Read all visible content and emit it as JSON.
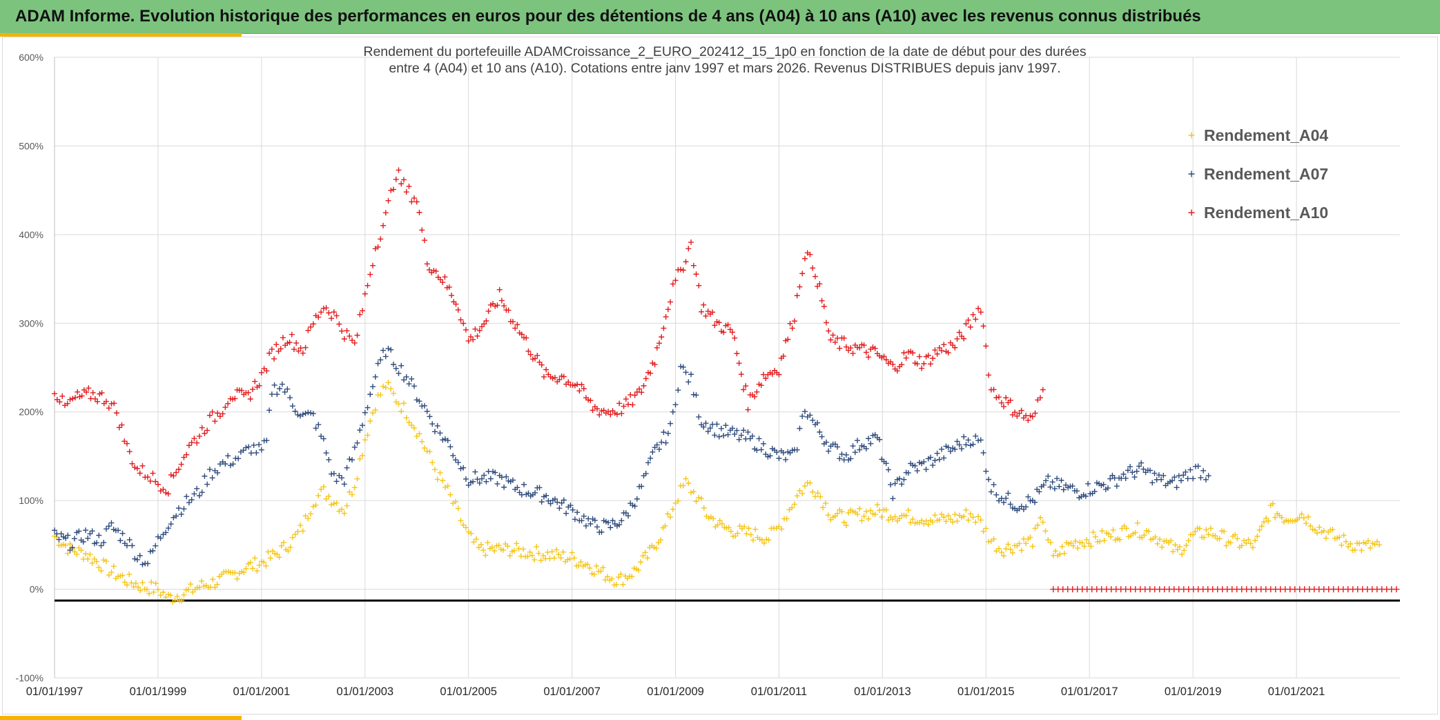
{
  "header": {
    "title": "ADAM Informe. Evolution historique des performances en euros pour des détentions de 4 ans (A04) à 10 ans (A10) avec les revenus connus distribués"
  },
  "colors": {
    "header_bg": "#7cc47e",
    "accent": "#f4b400",
    "A04": "#f5c518",
    "A07": "#2f4b7c",
    "A10": "#e31a1c",
    "grid": "#d9d9d9"
  },
  "chart_data": {
    "type": "scatter",
    "title_line1": "Rendement du portefeuille ADAMCroissance_2_EURO_202412_15_1p0  en fonction de la date de début pour des durées",
    "title_line2": "entre 4 (A04) et 10 ans (A10). Cotations entre janv 1997 et mars 2026. Revenus DISTRIBUES depuis janv 1997.",
    "xlabel": "",
    "ylabel": "",
    "x_range": [
      1997.0,
      2023.0
    ],
    "ylim": [
      -100,
      600
    ],
    "y_ticks": [
      -100,
      0,
      100,
      200,
      300,
      400,
      500,
      600
    ],
    "y_tick_labels": [
      "-100%",
      "0%",
      "100%",
      "200%",
      "300%",
      "400%",
      "500%",
      "600%"
    ],
    "x_tick_values": [
      1997,
      1999,
      2001,
      2003,
      2005,
      2007,
      2009,
      2011,
      2013,
      2015,
      2017,
      2019,
      2021
    ],
    "x_tick_labels": [
      "01/01/1997",
      "01/01/1999",
      "01/01/2001",
      "01/01/2003",
      "01/01/2005",
      "01/01/2007",
      "01/01/2009",
      "01/01/2011",
      "01/01/2013",
      "01/01/2015",
      "01/01/2017",
      "01/01/2019",
      "01/01/2021"
    ],
    "grid": true,
    "legend_position": "right",
    "series": [
      {
        "name": "Rendement_A04",
        "color": "#f5c518",
        "marker": "+",
        "points": [
          [
            1997.0,
            60
          ],
          [
            1997.3,
            45
          ],
          [
            1997.6,
            40
          ],
          [
            1997.9,
            28
          ],
          [
            1998.1,
            20
          ],
          [
            1998.4,
            10
          ],
          [
            1998.7,
            3
          ],
          [
            1999.0,
            0
          ],
          [
            1999.2,
            -10
          ],
          [
            1999.5,
            -5
          ],
          [
            1999.8,
            3
          ],
          [
            2000.1,
            8
          ],
          [
            2000.4,
            15
          ],
          [
            2000.7,
            25
          ],
          [
            2001.0,
            30
          ],
          [
            2001.3,
            40
          ],
          [
            2001.6,
            55
          ],
          [
            2001.8,
            70
          ],
          [
            2002.0,
            100
          ],
          [
            2002.2,
            110
          ],
          [
            2002.4,
            100
          ],
          [
            2002.6,
            90
          ],
          [
            2002.8,
            120
          ],
          [
            2003.0,
            170
          ],
          [
            2003.2,
            210
          ],
          [
            2003.4,
            230
          ],
          [
            2003.6,
            215
          ],
          [
            2003.8,
            200
          ],
          [
            2004.0,
            180
          ],
          [
            2004.2,
            155
          ],
          [
            2004.4,
            130
          ],
          [
            2004.6,
            110
          ],
          [
            2004.8,
            85
          ],
          [
            2005.0,
            60
          ],
          [
            2005.2,
            45
          ],
          [
            2005.5,
            45
          ],
          [
            2005.8,
            45
          ],
          [
            2006.1,
            42
          ],
          [
            2006.4,
            40
          ],
          [
            2006.7,
            38
          ],
          [
            2007.0,
            35
          ],
          [
            2007.3,
            28
          ],
          [
            2007.6,
            18
          ],
          [
            2007.9,
            10
          ],
          [
            2008.2,
            20
          ],
          [
            2008.5,
            40
          ],
          [
            2008.8,
            70
          ],
          [
            2009.0,
            100
          ],
          [
            2009.2,
            120
          ],
          [
            2009.4,
            105
          ],
          [
            2009.6,
            85
          ],
          [
            2009.9,
            70
          ],
          [
            2010.2,
            65
          ],
          [
            2010.5,
            62
          ],
          [
            2010.8,
            58
          ],
          [
            2011.0,
            70
          ],
          [
            2011.2,
            90
          ],
          [
            2011.4,
            110
          ],
          [
            2011.6,
            120
          ],
          [
            2011.8,
            105
          ],
          [
            2012.0,
            85
          ],
          [
            2012.3,
            80
          ],
          [
            2012.6,
            85
          ],
          [
            2012.9,
            88
          ],
          [
            2013.2,
            85
          ],
          [
            2013.5,
            82
          ],
          [
            2013.8,
            80
          ],
          [
            2014.1,
            78
          ],
          [
            2014.4,
            80
          ],
          [
            2014.7,
            85
          ],
          [
            2014.9,
            75
          ],
          [
            2015.1,
            55
          ],
          [
            2015.3,
            45
          ],
          [
            2015.6,
            50
          ],
          [
            2015.9,
            55
          ],
          [
            2016.1,
            80
          ],
          [
            2016.3,
            35
          ],
          [
            2016.6,
            50
          ],
          [
            2016.9,
            55
          ],
          [
            2017.2,
            58
          ],
          [
            2017.5,
            62
          ],
          [
            2017.8,
            68
          ],
          [
            2018.1,
            65
          ],
          [
            2018.4,
            55
          ],
          [
            2018.7,
            42
          ],
          [
            2019.0,
            60
          ],
          [
            2019.3,
            65
          ],
          [
            2019.6,
            58
          ],
          [
            2019.9,
            52
          ],
          [
            2020.2,
            50
          ],
          [
            2020.5,
            90
          ],
          [
            2020.8,
            80
          ],
          [
            2021.1,
            85
          ],
          [
            2021.4,
            70
          ],
          [
            2021.7,
            60
          ],
          [
            2022.0,
            52
          ],
          [
            2022.3,
            48
          ],
          [
            2022.6,
            50
          ]
        ]
      },
      {
        "name": "Rendement_A07",
        "color": "#2f4b7c",
        "marker": "+",
        "points": [
          [
            1997.0,
            60
          ],
          [
            1997.3,
            52
          ],
          [
            1997.6,
            62
          ],
          [
            1997.9,
            55
          ],
          [
            1998.1,
            70
          ],
          [
            1998.4,
            55
          ],
          [
            1998.6,
            38
          ],
          [
            1998.8,
            30
          ],
          [
            1999.0,
            55
          ],
          [
            1999.2,
            75
          ],
          [
            1999.4,
            90
          ],
          [
            1999.6,
            100
          ],
          [
            1999.8,
            110
          ],
          [
            2000.0,
            130
          ],
          [
            2000.2,
            140
          ],
          [
            2000.4,
            145
          ],
          [
            2000.6,
            150
          ],
          [
            2000.8,
            160
          ],
          [
            2001.0,
            155
          ],
          [
            2001.1,
            165
          ],
          [
            2001.2,
            225
          ],
          [
            2001.4,
            230
          ],
          [
            2001.6,
            210
          ],
          [
            2001.8,
            195
          ],
          [
            2002.0,
            195
          ],
          [
            2002.2,
            165
          ],
          [
            2002.4,
            125
          ],
          [
            2002.6,
            125
          ],
          [
            2002.8,
            155
          ],
          [
            2003.0,
            200
          ],
          [
            2003.2,
            240
          ],
          [
            2003.4,
            270
          ],
          [
            2003.6,
            255
          ],
          [
            2003.8,
            240
          ],
          [
            2004.0,
            220
          ],
          [
            2004.2,
            200
          ],
          [
            2004.4,
            180
          ],
          [
            2004.6,
            165
          ],
          [
            2004.8,
            145
          ],
          [
            2005.0,
            125
          ],
          [
            2005.3,
            125
          ],
          [
            2005.6,
            125
          ],
          [
            2005.9,
            115
          ],
          [
            2006.2,
            110
          ],
          [
            2006.5,
            105
          ],
          [
            2006.8,
            95
          ],
          [
            2007.1,
            85
          ],
          [
            2007.4,
            72
          ],
          [
            2007.7,
            70
          ],
          [
            2008.0,
            80
          ],
          [
            2008.3,
            110
          ],
          [
            2008.6,
            155
          ],
          [
            2008.9,
            180
          ],
          [
            2009.1,
            250
          ],
          [
            2009.3,
            235
          ],
          [
            2009.5,
            190
          ],
          [
            2009.8,
            180
          ],
          [
            2010.1,
            175
          ],
          [
            2010.4,
            170
          ],
          [
            2010.7,
            160
          ],
          [
            2011.0,
            150
          ],
          [
            2011.3,
            150
          ],
          [
            2011.5,
            205
          ],
          [
            2011.7,
            185
          ],
          [
            2012.0,
            160
          ],
          [
            2012.3,
            150
          ],
          [
            2012.6,
            165
          ],
          [
            2012.9,
            170
          ],
          [
            2013.2,
            110
          ],
          [
            2013.5,
            135
          ],
          [
            2013.8,
            140
          ],
          [
            2014.1,
            150
          ],
          [
            2014.4,
            160
          ],
          [
            2014.7,
            170
          ],
          [
            2014.9,
            165
          ],
          [
            2015.1,
            115
          ],
          [
            2015.3,
            105
          ],
          [
            2015.6,
            95
          ],
          [
            2015.9,
            100
          ],
          [
            2016.2,
            120
          ],
          [
            2016.5,
            115
          ],
          [
            2016.8,
            110
          ],
          [
            2017.1,
            115
          ],
          [
            2017.4,
            120
          ],
          [
            2017.7,
            130
          ],
          [
            2018.0,
            135
          ],
          [
            2018.3,
            125
          ],
          [
            2018.6,
            118
          ],
          [
            2018.9,
            130
          ],
          [
            2019.1,
            135
          ],
          [
            2019.3,
            128
          ]
        ]
      },
      {
        "name": "Rendement_A10",
        "color": "#e31a1c",
        "marker": "+",
        "points": [
          [
            1997.0,
            225
          ],
          [
            1997.2,
            205
          ],
          [
            1997.4,
            215
          ],
          [
            1997.7,
            220
          ],
          [
            1998.0,
            215
          ],
          [
            1998.2,
            200
          ],
          [
            1998.4,
            160
          ],
          [
            1998.6,
            135
          ],
          [
            1998.8,
            130
          ],
          [
            1999.0,
            120
          ],
          [
            1999.2,
            115
          ],
          [
            1999.4,
            140
          ],
          [
            1999.6,
            160
          ],
          [
            1999.8,
            175
          ],
          [
            2000.0,
            190
          ],
          [
            2000.2,
            200
          ],
          [
            2000.4,
            220
          ],
          [
            2000.7,
            215
          ],
          [
            2001.0,
            240
          ],
          [
            2001.2,
            265
          ],
          [
            2001.5,
            285
          ],
          [
            2001.8,
            270
          ],
          [
            2002.0,
            300
          ],
          [
            2002.2,
            320
          ],
          [
            2002.4,
            310
          ],
          [
            2002.6,
            290
          ],
          [
            2002.8,
            275
          ],
          [
            2003.0,
            330
          ],
          [
            2003.2,
            385
          ],
          [
            2003.4,
            420
          ],
          [
            2003.6,
            470
          ],
          [
            2003.8,
            450
          ],
          [
            2004.0,
            440
          ],
          [
            2004.2,
            370
          ],
          [
            2004.5,
            350
          ],
          [
            2004.8,
            320
          ],
          [
            2005.0,
            280
          ],
          [
            2005.3,
            300
          ],
          [
            2005.6,
            330
          ],
          [
            2005.9,
            300
          ],
          [
            2006.2,
            270
          ],
          [
            2006.5,
            240
          ],
          [
            2006.8,
            240
          ],
          [
            2007.1,
            230
          ],
          [
            2007.4,
            205
          ],
          [
            2007.7,
            200
          ],
          [
            2008.0,
            205
          ],
          [
            2008.3,
            220
          ],
          [
            2008.6,
            260
          ],
          [
            2008.9,
            330
          ],
          [
            2009.1,
            360
          ],
          [
            2009.3,
            390
          ],
          [
            2009.5,
            320
          ],
          [
            2009.8,
            300
          ],
          [
            2010.1,
            290
          ],
          [
            2010.4,
            210
          ],
          [
            2010.7,
            240
          ],
          [
            2011.0,
            250
          ],
          [
            2011.3,
            310
          ],
          [
            2011.5,
            380
          ],
          [
            2011.7,
            360
          ],
          [
            2012.0,
            280
          ],
          [
            2012.3,
            275
          ],
          [
            2012.6,
            270
          ],
          [
            2012.9,
            265
          ],
          [
            2013.2,
            250
          ],
          [
            2013.5,
            265
          ],
          [
            2013.8,
            255
          ],
          [
            2014.1,
            270
          ],
          [
            2014.4,
            275
          ],
          [
            2014.7,
            300
          ],
          [
            2014.9,
            320
          ],
          [
            2015.1,
            225
          ],
          [
            2015.3,
            215
          ],
          [
            2015.6,
            200
          ],
          [
            2015.9,
            190
          ],
          [
            2016.1,
            225
          ]
        ]
      }
    ],
    "A10_zero_segment": {
      "x_start": 2016.3,
      "x_end": 2023.0,
      "value": 0
    }
  }
}
